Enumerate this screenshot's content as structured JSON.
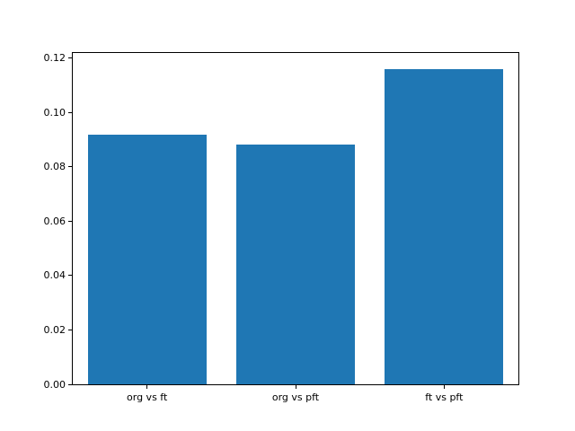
{
  "chart_data": {
    "type": "bar",
    "categories": [
      "org vs ft",
      "org vs pft",
      "ft vs pft"
    ],
    "values": [
      0.0917,
      0.088,
      0.116
    ],
    "title": "",
    "xlabel": "",
    "ylabel": "",
    "ylim": [
      0,
      0.1218
    ],
    "yticks": [
      0.0,
      0.02,
      0.04,
      0.06,
      0.08,
      0.1,
      0.12
    ],
    "ytick_labels": [
      "0.00",
      "0.02",
      "0.04",
      "0.06",
      "0.08",
      "0.10",
      "0.12"
    ],
    "bar_width_fraction": 0.8,
    "grid": false,
    "legend": null,
    "colors": {
      "bar": "#1f77b4",
      "background": "#ffffff",
      "spine": "#000000",
      "text": "#000000"
    }
  }
}
